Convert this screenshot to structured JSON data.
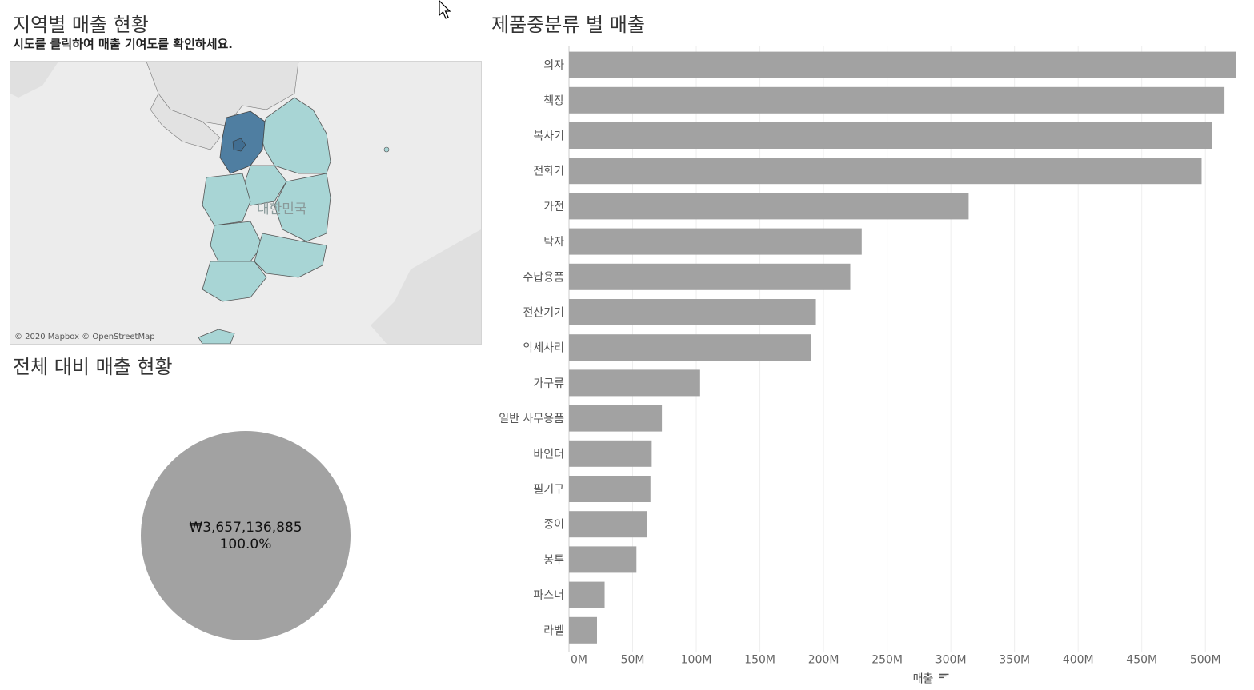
{
  "map_section": {
    "title": "지역별 매출 현황",
    "subtitle": "시도를 클릭하여 매출 기여도를 확인하세요.",
    "map_label": "대한민국",
    "attribution": "© 2020 Mapbox © OpenStreetMap",
    "colors": {
      "water": "#ececec",
      "land": "#e2e2e2",
      "region": "#a8d5d5",
      "selected": "#4f7ea1",
      "border": "#555555"
    }
  },
  "total_section": {
    "title": "전체 대비 매출 현황",
    "total_value": "₩3,657,136,885",
    "share_percent": "100.0%",
    "share_fraction": 1.0,
    "color": "#a2a2a2"
  },
  "bar_section": {
    "title": "제품중분류 별 매출"
  },
  "chart_data": {
    "type": "bar",
    "orientation": "horizontal",
    "title": "제품중분류 별 매출",
    "xlabel": "매출",
    "ylabel": "",
    "sort_icon": "sort-descending-icon",
    "bar_color": "#a2a2a2",
    "grid": true,
    "xlim": [
      0,
      525
    ],
    "x_ticks": [
      0,
      50,
      100,
      150,
      200,
      250,
      300,
      350,
      400,
      450,
      500
    ],
    "x_tick_labels": [
      "0M",
      "50M",
      "100M",
      "150M",
      "200M",
      "250M",
      "300M",
      "350M",
      "400M",
      "450M",
      "500M"
    ],
    "categories": [
      "의자",
      "책장",
      "복사기",
      "전화기",
      "가전",
      "탁자",
      "수납용품",
      "전산기기",
      "악세사리",
      "가구류",
      "일반 사무용품",
      "바인더",
      "필기구",
      "종이",
      "봉투",
      "파스너",
      "라벨"
    ],
    "values": [
      524,
      515,
      505,
      497,
      314,
      230,
      221,
      194,
      190,
      103,
      73,
      65,
      64,
      61,
      53,
      28,
      22
    ]
  }
}
